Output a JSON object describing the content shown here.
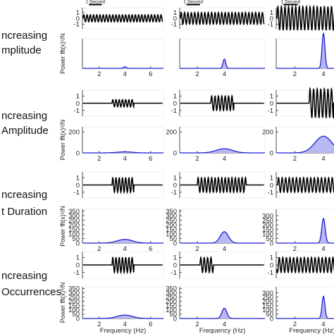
{
  "colors": {
    "wave": "#000000",
    "spectrum_line": "#1f1fd6",
    "spectrum_fill": "#b8b8f2",
    "axis": "#262626",
    "grid": "#e4e4e4"
  },
  "row_labels": [
    [
      "ncreasing",
      "mplitude"
    ],
    [
      "ncreasing",
      "Amplitude"
    ],
    [
      "ncreasing",
      "t Duration"
    ],
    [
      "ncreasing",
      "Occurrences"
    ]
  ],
  "scale_bar_label": "1 Second",
  "power_ylabel": "Power fft(x)²/N",
  "freq_xlabel": "Frequency (Hz)",
  "chart_data": [
    {
      "type": "area",
      "row": 1,
      "col": 1,
      "wave": {
        "yticks": [
          1,
          0,
          -1
        ],
        "ylim": [
          -1.8,
          1.8
        ],
        "amplitude": 0.6,
        "frequency_hz": 4,
        "burst_seconds": [
          0,
          7
        ]
      },
      "spectrum": {
        "xticks": [
          2,
          4,
          6
        ],
        "xlim": [
          0.7,
          7
        ],
        "yticks": [],
        "ylim": [
          0,
          3800
        ],
        "peak_freq_hz": 4,
        "peak_power": 200,
        "peak_width_hz": 0.12
      }
    },
    {
      "type": "area",
      "row": 1,
      "col": 2,
      "wave": {
        "yticks": [
          1,
          0,
          -1
        ],
        "ylim": [
          -1.8,
          1.8
        ],
        "amplitude": 1.0,
        "frequency_hz": 4,
        "burst_seconds": [
          0,
          7
        ]
      },
      "spectrum": {
        "xticks": [
          2,
          4
        ],
        "xlim": [
          0.7,
          7
        ],
        "yticks": [],
        "ylim": [
          0,
          3800
        ],
        "peak_freq_hz": 4,
        "peak_power": 1200,
        "peak_width_hz": 0.1
      }
    },
    {
      "type": "area",
      "row": 1,
      "col": 3,
      "wave": {
        "yticks": [
          1,
          0,
          -1
        ],
        "ylim": [
          -1.8,
          1.8
        ],
        "amplitude": 2.0,
        "frequency_hz": 4,
        "burst_seconds": [
          0,
          7
        ]
      },
      "spectrum": {
        "xticks": [
          2,
          4
        ],
        "xlim": [
          0.7,
          7
        ],
        "yticks": [],
        "ylim": [
          0,
          3800
        ],
        "peak_freq_hz": 4,
        "peak_power": 4500,
        "peak_width_hz": 0.1
      }
    },
    {
      "type": "area",
      "row": 2,
      "col": 1,
      "wave": {
        "yticks": [
          1,
          0,
          -1
        ],
        "ylim": [
          -1.8,
          1.8
        ],
        "amplitude": 0.5,
        "frequency_hz": 4,
        "burst_seconds": [
          3.0,
          4.7
        ]
      },
      "spectrum": {
        "xticks": [
          2,
          4,
          6
        ],
        "xlim": [
          0.7,
          7
        ],
        "yticks": [
          0,
          200
        ],
        "ylim": [
          0,
          250
        ],
        "peak_freq_hz": 4,
        "peak_power": 10,
        "peak_width_hz": 0.6
      }
    },
    {
      "type": "area",
      "row": 2,
      "col": 2,
      "wave": {
        "yticks": [
          1,
          0,
          -1
        ],
        "ylim": [
          -1.8,
          1.8
        ],
        "amplitude": 1.0,
        "frequency_hz": 4,
        "burst_seconds": [
          3.0,
          4.7
        ]
      },
      "spectrum": {
        "xticks": [
          2,
          4
        ],
        "xlim": [
          0.7,
          7
        ],
        "yticks": [
          0,
          200
        ],
        "ylim": [
          0,
          250
        ],
        "peak_freq_hz": 4,
        "peak_power": 40,
        "peak_width_hz": 0.6
      }
    },
    {
      "type": "area",
      "row": 2,
      "col": 3,
      "wave": {
        "yticks": [
          1,
          0,
          -1
        ],
        "ylim": [
          -1.8,
          1.8
        ],
        "amplitude": 2.0,
        "frequency_hz": 4,
        "burst_seconds": [
          3.0,
          4.7
        ]
      },
      "spectrum": {
        "xticks": [
          2,
          4
        ],
        "xlim": [
          0.7,
          7
        ],
        "yticks": [
          0,
          200
        ],
        "ylim": [
          0,
          250
        ],
        "peak_freq_hz": 4,
        "peak_power": 160,
        "peak_width_hz": 0.6
      }
    },
    {
      "type": "area",
      "row": 3,
      "col": 1,
      "wave": {
        "yticks": [
          1,
          0,
          -1
        ],
        "ylim": [
          -1.8,
          1.8
        ],
        "amplitude": 1.0,
        "frequency_hz": 4,
        "burst_seconds": [
          3.0,
          4.7
        ]
      },
      "spectrum": {
        "xticks": [
          2,
          4,
          6
        ],
        "xlim": [
          0.7,
          7
        ],
        "yticks": [
          0,
          50,
          100,
          150,
          200,
          250,
          300,
          350
        ],
        "ylim": [
          0,
          370
        ],
        "peak_freq_hz": 4,
        "peak_power": 40,
        "peak_width_hz": 0.6
      }
    },
    {
      "type": "area",
      "row": 3,
      "col": 2,
      "wave": {
        "yticks": [
          1,
          0,
          -1
        ],
        "ylim": [
          -1.8,
          1.8
        ],
        "amplitude": 1.0,
        "frequency_hz": 4,
        "burst_seconds": [
          2.0,
          5.6
        ]
      },
      "spectrum": {
        "xticks": [
          2,
          4
        ],
        "xlim": [
          0.7,
          7
        ],
        "yticks": [
          0,
          50,
          100,
          150,
          200,
          250,
          300,
          350
        ],
        "ylim": [
          0,
          370
        ],
        "peak_freq_hz": 4,
        "peak_power": 125,
        "peak_width_hz": 0.3
      }
    },
    {
      "type": "area",
      "row": 3,
      "col": 3,
      "wave": {
        "yticks": [
          1,
          0,
          -1
        ],
        "ylim": [
          -1.8,
          1.8
        ],
        "amplitude": 1.0,
        "frequency_hz": 4,
        "burst_seconds": [
          0.8,
          7
        ]
      },
      "spectrum": {
        "xticks": [
          2,
          4
        ],
        "xlim": [
          0.7,
          7
        ],
        "yticks": [
          0,
          50,
          100,
          150,
          200,
          250,
          300
        ],
        "ylim": [
          0,
          370
        ],
        "peak_freq_hz": 4,
        "peak_power": 270,
        "peak_width_hz": 0.12
      }
    },
    {
      "type": "area",
      "row": 4,
      "col": 1,
      "wave": {
        "yticks": [
          1,
          0,
          -1
        ],
        "ylim": [
          -1.8,
          1.8
        ],
        "amplitude": 1.0,
        "frequency_hz": 4,
        "burst_seconds": [
          3.0,
          4.7
        ]
      },
      "spectrum": {
        "xticks": [
          2,
          4,
          6
        ],
        "xlim": [
          0.7,
          7
        ],
        "yticks": [
          0,
          50,
          100,
          150,
          200,
          250,
          300,
          350
        ],
        "ylim": [
          0,
          370
        ],
        "peak_freq_hz": 4,
        "peak_power": 40,
        "peak_width_hz": 0.6
      }
    },
    {
      "type": "area",
      "row": 4,
      "col": 2,
      "wave": {
        "yticks": [
          1,
          0,
          -1
        ],
        "ylim": [
          -1.8,
          1.8
        ],
        "amplitude": 1.0,
        "frequency_hz": 4,
        "burst_seconds": [
          2.2,
          3.2
        ]
      },
      "spectrum": {
        "xticks": [
          2,
          4
        ],
        "xlim": [
          0.7,
          7
        ],
        "yticks": [
          0,
          50,
          100,
          150,
          200,
          250,
          300,
          350
        ],
        "ylim": [
          0,
          370
        ],
        "peak_freq_hz": 4,
        "peak_power": 120,
        "peak_width_hz": 0.18
      }
    },
    {
      "type": "area",
      "row": 4,
      "col": 3,
      "wave": {
        "yticks": [
          1,
          0,
          -1
        ],
        "ylim": [
          -1.8,
          1.8
        ],
        "amplitude": 1.0,
        "frequency_hz": 4,
        "burst_seconds": [
          0.6,
          7
        ]
      },
      "spectrum": {
        "xticks": [
          2,
          4
        ],
        "xlim": [
          0.7,
          7
        ],
        "yticks": [
          0,
          50,
          100,
          150,
          200,
          250,
          300
        ],
        "ylim": [
          0,
          370
        ],
        "peak_freq_hz": 4,
        "peak_power": 260,
        "peak_width_hz": 0.1
      }
    }
  ]
}
